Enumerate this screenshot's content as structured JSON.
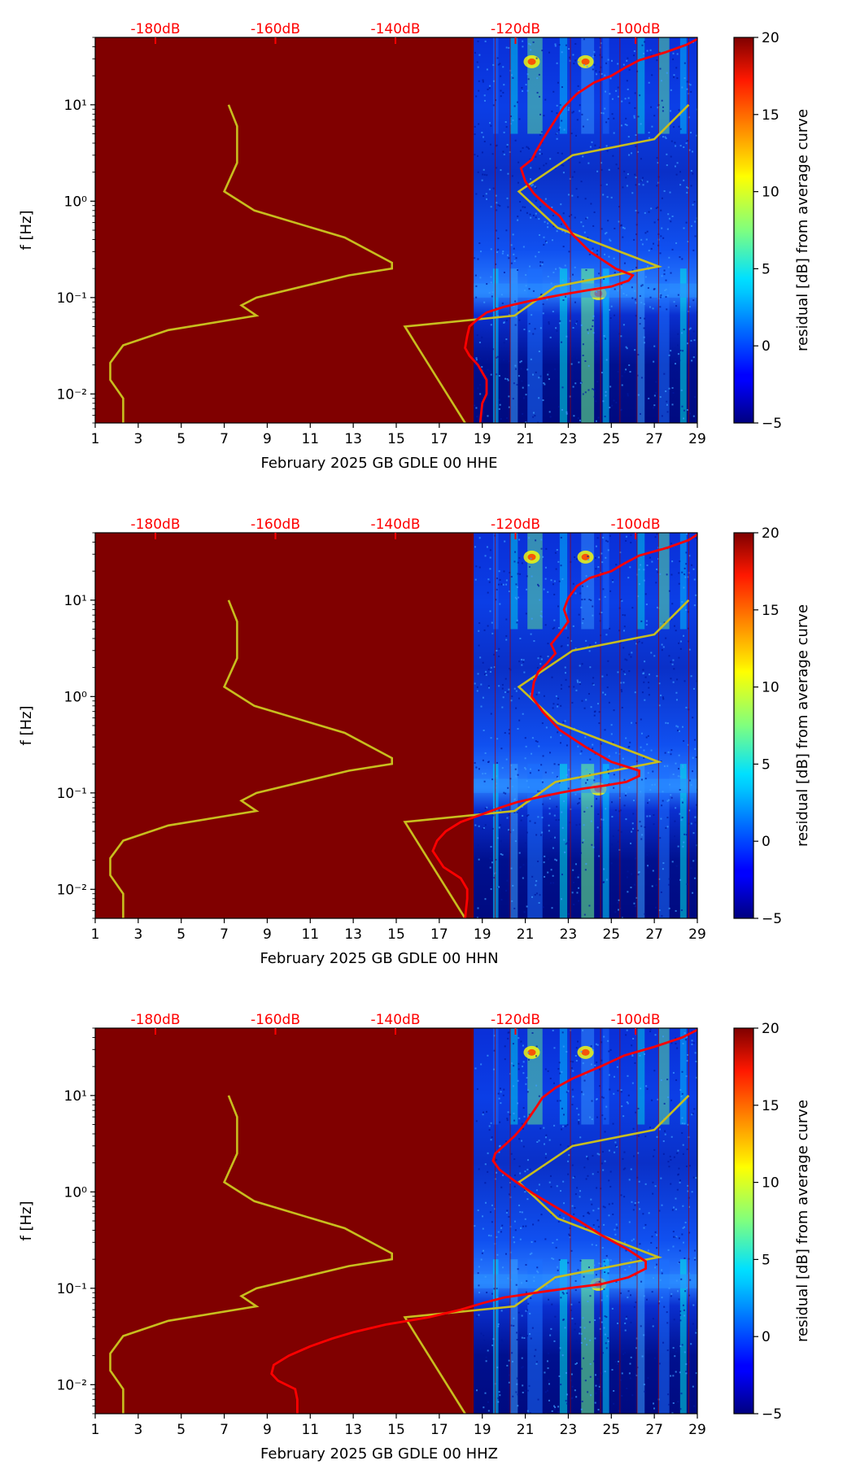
{
  "colors": {
    "background_fill": "#800000",
    "psd_curve": "#ff0000",
    "noise_model": "#c8be1e",
    "db_axis": "#ff0000"
  },
  "colorbar": {
    "label": "residual [dB] from average curve",
    "ticks": [
      "−5",
      "0",
      "5",
      "10",
      "15",
      "20"
    ],
    "range": [
      -5,
      20
    ],
    "colormap": "jet"
  },
  "chart_data": [
    {
      "type": "heatmap",
      "xlabel": "February 2025 GB GDLE 00 HHE",
      "ylabel": "f [Hz]",
      "x_ticks": [
        "1",
        "3",
        "5",
        "7",
        "9",
        "11",
        "13",
        "15",
        "17",
        "19",
        "21",
        "23",
        "25",
        "27",
        "29"
      ],
      "x_range": [
        1,
        29
      ],
      "y_scale": "log",
      "y_range": [
        0.005,
        50
      ],
      "y_ticks": [
        "10⁻²",
        "10⁻¹",
        "10⁰",
        "10¹"
      ],
      "top_axis_ticks": [
        "-180dB",
        "-160dB",
        "-140dB",
        "-120dB",
        "-100dB"
      ],
      "data_start_day": 18.6,
      "series": [
        {
          "name": "Peterson noise model (low/high)",
          "x": [
            2.3,
            2.3,
            1.7,
            1.7,
            2.3,
            4.4,
            8.5,
            7.8,
            8.5,
            12.8,
            14.8,
            14.8,
            12.6,
            8.4,
            7.0,
            7.6,
            7.6,
            7.2
          ],
          "y": [
            0.005,
            0.009,
            0.014,
            0.021,
            0.032,
            0.046,
            0.065,
            0.083,
            0.1,
            0.17,
            0.2,
            0.23,
            0.42,
            0.8,
            1.26,
            2.5,
            6.0,
            10.0
          ]
        },
        {
          "name": "Peterson noise model (high)",
          "x": [
            18.2,
            15.4,
            20.5,
            22.4,
            27.2,
            22.5,
            20.7,
            23.2,
            27.0,
            28.6
          ],
          "y": [
            0.005,
            0.05,
            0.065,
            0.13,
            0.21,
            0.53,
            1.26,
            3.0,
            4.4,
            10.0
          ]
        },
        {
          "name": "PSD curve",
          "x": [
            18.9,
            19.0,
            19.2,
            19.2,
            18.8,
            18.4,
            18.2,
            18.3,
            18.4,
            18.8,
            19.2,
            20.0,
            21.0,
            22.0,
            23.0,
            24.0,
            25.0,
            25.8,
            26.0,
            25.2,
            24.0,
            23.2,
            22.6,
            22.0,
            21.4,
            21.0,
            20.8,
            21.3,
            21.5,
            21.8,
            22.1,
            22.4,
            22.8,
            23.4,
            24.2,
            25.0,
            25.6,
            26.3,
            27.5,
            28.5,
            29.0
          ],
          "y": [
            0.005,
            0.008,
            0.01,
            0.014,
            0.02,
            0.025,
            0.03,
            0.04,
            0.05,
            0.06,
            0.07,
            0.08,
            0.09,
            0.1,
            0.11,
            0.12,
            0.13,
            0.15,
            0.17,
            0.2,
            0.3,
            0.45,
            0.7,
            0.9,
            1.2,
            1.6,
            2.2,
            2.7,
            3.3,
            4.3,
            5.5,
            7.0,
            9.5,
            13.0,
            17.0,
            20.0,
            24.0,
            29.0,
            35.0,
            42.0,
            48.0
          ]
        }
      ]
    },
    {
      "type": "heatmap",
      "xlabel": "February 2025 GB GDLE 00 HHN",
      "ylabel": "f [Hz]",
      "x_ticks": [
        "1",
        "3",
        "5",
        "7",
        "9",
        "11",
        "13",
        "15",
        "17",
        "19",
        "21",
        "23",
        "25",
        "27",
        "29"
      ],
      "x_range": [
        1,
        29
      ],
      "y_scale": "log",
      "y_range": [
        0.005,
        50
      ],
      "y_ticks": [
        "10⁻²",
        "10⁻¹",
        "10⁰",
        "10¹"
      ],
      "top_axis_ticks": [
        "-180dB",
        "-160dB",
        "-140dB",
        "-120dB",
        "-100dB"
      ],
      "data_start_day": 18.6,
      "series": [
        {
          "name": "Peterson noise model (low/high)",
          "x": [
            2.3,
            2.3,
            1.7,
            1.7,
            2.3,
            4.4,
            8.5,
            7.8,
            8.5,
            12.8,
            14.8,
            14.8,
            12.6,
            8.4,
            7.0,
            7.6,
            7.6,
            7.2
          ],
          "y": [
            0.005,
            0.009,
            0.014,
            0.021,
            0.032,
            0.046,
            0.065,
            0.083,
            0.1,
            0.17,
            0.2,
            0.23,
            0.42,
            0.8,
            1.26,
            2.5,
            6.0,
            10.0
          ]
        },
        {
          "name": "Peterson noise model (high)",
          "x": [
            18.2,
            15.4,
            20.5,
            22.4,
            27.2,
            22.5,
            20.7,
            23.2,
            27.0,
            28.6
          ],
          "y": [
            0.005,
            0.05,
            0.065,
            0.13,
            0.21,
            0.53,
            1.26,
            3.0,
            4.4,
            10.0
          ]
        },
        {
          "name": "PSD curve",
          "x": [
            18.2,
            18.3,
            18.3,
            18.0,
            17.2,
            16.7,
            16.9,
            17.3,
            18.0,
            19.0,
            19.8,
            20.6,
            21.6,
            22.6,
            23.6,
            24.8,
            25.7,
            26.3,
            26.3,
            25.0,
            23.8,
            22.6,
            21.8,
            21.3,
            21.4,
            21.6,
            22.0,
            22.4,
            22.2,
            22.6,
            23.0,
            22.8,
            23.0,
            23.4,
            24.0,
            25.0,
            25.6,
            26.3,
            27.6,
            28.6,
            29.0
          ],
          "y": [
            0.005,
            0.008,
            0.01,
            0.013,
            0.017,
            0.025,
            0.032,
            0.04,
            0.05,
            0.06,
            0.07,
            0.08,
            0.09,
            0.1,
            0.11,
            0.12,
            0.13,
            0.15,
            0.17,
            0.21,
            0.3,
            0.45,
            0.7,
            1.0,
            1.4,
            1.8,
            2.2,
            2.8,
            3.5,
            4.5,
            6.0,
            8.0,
            10.5,
            14.0,
            17.0,
            20.0,
            24.0,
            29.0,
            35.0,
            42.0,
            48.0
          ]
        }
      ]
    },
    {
      "type": "heatmap",
      "xlabel": "February 2025 GB GDLE 00 HHZ",
      "ylabel": "f [Hz]",
      "x_ticks": [
        "1",
        "3",
        "5",
        "7",
        "9",
        "11",
        "13",
        "15",
        "17",
        "19",
        "21",
        "23",
        "25",
        "27",
        "29"
      ],
      "x_range": [
        1,
        29
      ],
      "y_scale": "log",
      "y_range": [
        0.005,
        50
      ],
      "y_ticks": [
        "10⁻²",
        "10⁻¹",
        "10⁰",
        "10¹"
      ],
      "top_axis_ticks": [
        "-180dB",
        "-160dB",
        "-140dB",
        "-120dB",
        "-100dB"
      ],
      "data_start_day": 18.6,
      "series": [
        {
          "name": "Peterson noise model (low/high)",
          "x": [
            2.3,
            2.3,
            1.7,
            1.7,
            2.3,
            4.4,
            8.5,
            7.8,
            8.5,
            12.8,
            14.8,
            14.8,
            12.6,
            8.4,
            7.0,
            7.6,
            7.6,
            7.2
          ],
          "y": [
            0.005,
            0.009,
            0.014,
            0.021,
            0.032,
            0.046,
            0.065,
            0.083,
            0.1,
            0.17,
            0.2,
            0.23,
            0.42,
            0.8,
            1.26,
            2.5,
            6.0,
            10.0
          ]
        },
        {
          "name": "Peterson noise model (high)",
          "x": [
            18.2,
            15.4,
            20.5,
            22.4,
            27.2,
            22.5,
            20.7,
            23.2,
            27.0,
            28.6
          ],
          "y": [
            0.005,
            0.05,
            0.065,
            0.13,
            0.21,
            0.53,
            1.26,
            3.0,
            4.4,
            10.0
          ]
        },
        {
          "name": "PSD curve",
          "x": [
            10.4,
            10.4,
            10.3,
            9.5,
            9.2,
            9.3,
            10.0,
            11.0,
            12.0,
            13.0,
            14.5,
            16.5,
            18.0,
            19.0,
            20.0,
            21.5,
            23.0,
            24.5,
            25.8,
            26.6,
            26.6,
            25.8,
            24.6,
            23.5,
            22.4,
            21.4,
            20.5,
            19.8,
            19.5,
            19.6,
            20.0,
            20.5,
            20.9,
            21.2,
            21.5,
            21.8,
            22.4,
            23.2,
            24.5,
            25.6,
            27.0,
            28.3,
            29.0
          ],
          "y": [
            0.005,
            0.007,
            0.009,
            0.011,
            0.013,
            0.016,
            0.02,
            0.025,
            0.03,
            0.035,
            0.042,
            0.05,
            0.06,
            0.07,
            0.08,
            0.09,
            0.1,
            0.11,
            0.13,
            0.16,
            0.19,
            0.25,
            0.35,
            0.5,
            0.7,
            0.95,
            1.3,
            1.7,
            2.1,
            2.5,
            3.0,
            3.8,
            4.8,
            6.0,
            7.5,
            9.5,
            12.0,
            15.0,
            20.0,
            26.0,
            32.0,
            40.0,
            48.0
          ]
        }
      ]
    }
  ]
}
